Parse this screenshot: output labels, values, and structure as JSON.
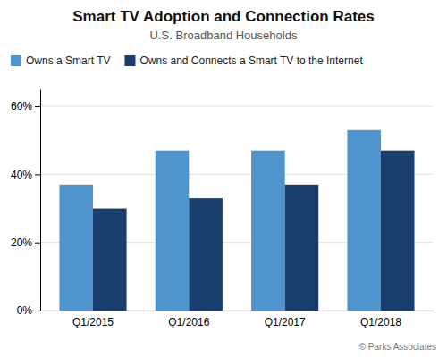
{
  "chart_data": {
    "type": "bar",
    "title": "Smart TV Adoption and Connection Rates",
    "subtitle": "U.S. Broadband Households",
    "categories": [
      "Q1/2015",
      "Q1/2016",
      "Q1/2017",
      "Q1/2018"
    ],
    "series": [
      {
        "name": "Owns a Smart TV",
        "color": "#4f94cd",
        "values": [
          37,
          47,
          47,
          53
        ]
      },
      {
        "name": "Owns and Connects a Smart TV to the Internet",
        "color": "#1a3f6f",
        "values": [
          30,
          33,
          37,
          47
        ]
      }
    ],
    "ylim": [
      0,
      65
    ],
    "yticks": [
      {
        "value": 0,
        "label": "0%"
      },
      {
        "value": 20,
        "label": "20%"
      },
      {
        "value": 40,
        "label": "40%"
      },
      {
        "value": 60,
        "label": "60%"
      }
    ],
    "grid": true,
    "legend": "upper left",
    "annotations": [
      "© Parks Associates"
    ]
  }
}
